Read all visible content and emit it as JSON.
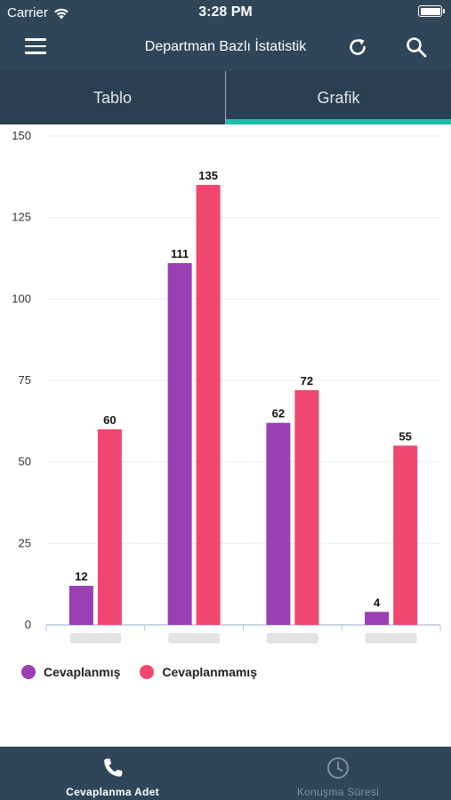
{
  "status_bar": {
    "carrier": "Carrier",
    "time": "3:28 PM",
    "wifi_icon": "wifi-icon",
    "battery_icon": "battery-icon"
  },
  "nav": {
    "title": "Departman Bazlı İstatistik",
    "menu_icon": "hamburger-menu-icon",
    "refresh_icon": "refresh-icon",
    "search_icon": "search-icon"
  },
  "tabs": [
    {
      "label": "Tablo",
      "active": false
    },
    {
      "label": "Grafik",
      "active": true
    }
  ],
  "colors": {
    "header_bg": "#2f4659",
    "tab_bg": "#2a3f51",
    "tab_indicator": "#1bbfa8",
    "series_answered": "#9b3fb5",
    "series_unanswered": "#ef476f",
    "bottom_active": "#ffffff",
    "bottom_inactive": "#7e8fa0"
  },
  "chart_data": {
    "type": "bar",
    "categories": [
      "",
      "",
      "",
      ""
    ],
    "categories_note_visible": false,
    "series": [
      {
        "name": "Cevaplanmış",
        "values": [
          12,
          111,
          62,
          4
        ],
        "color": "#9b3fb5"
      },
      {
        "name": "Cevaplanmamış",
        "values": [
          60,
          135,
          72,
          55
        ],
        "color": "#ef476f"
      }
    ],
    "yticks": [
      0,
      25,
      50,
      75,
      100,
      125,
      150
    ],
    "ylim": [
      0,
      150
    ],
    "grid": true,
    "legend": "bottom-left",
    "title": "",
    "xlabel": "",
    "ylabel": ""
  },
  "legend": {
    "items": [
      {
        "label": "Cevaplanmış",
        "color": "#9b3fb5"
      },
      {
        "label": "Cevaplanmamış",
        "color": "#ef476f"
      }
    ]
  },
  "bottom_nav": {
    "items": [
      {
        "label": "Cevaplanma Adet",
        "icon": "phone-icon",
        "active": true
      },
      {
        "label": "Konuşma Süresi",
        "icon": "clock-icon",
        "active": false
      }
    ]
  }
}
